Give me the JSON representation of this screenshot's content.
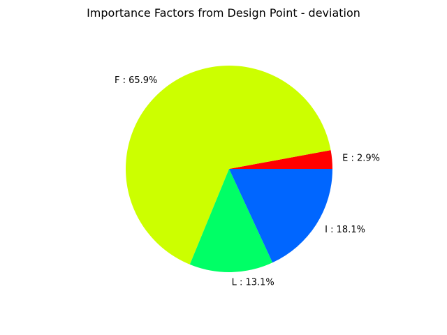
{
  "chart_data": {
    "type": "pie",
    "title": "Importance Factors from Design Point - deviation",
    "slices": [
      {
        "name": "E",
        "value": 2.9,
        "label": "E : 2.9%",
        "color": "#ff0000"
      },
      {
        "name": "F",
        "value": 65.9,
        "label": "F : 65.9%",
        "color": "#ccff00"
      },
      {
        "name": "L",
        "value": 13.1,
        "label": "L : 13.1%",
        "color": "#00ff66"
      },
      {
        "name": "I",
        "value": 18.1,
        "label": "I : 18.1%",
        "color": "#0066ff"
      }
    ]
  }
}
